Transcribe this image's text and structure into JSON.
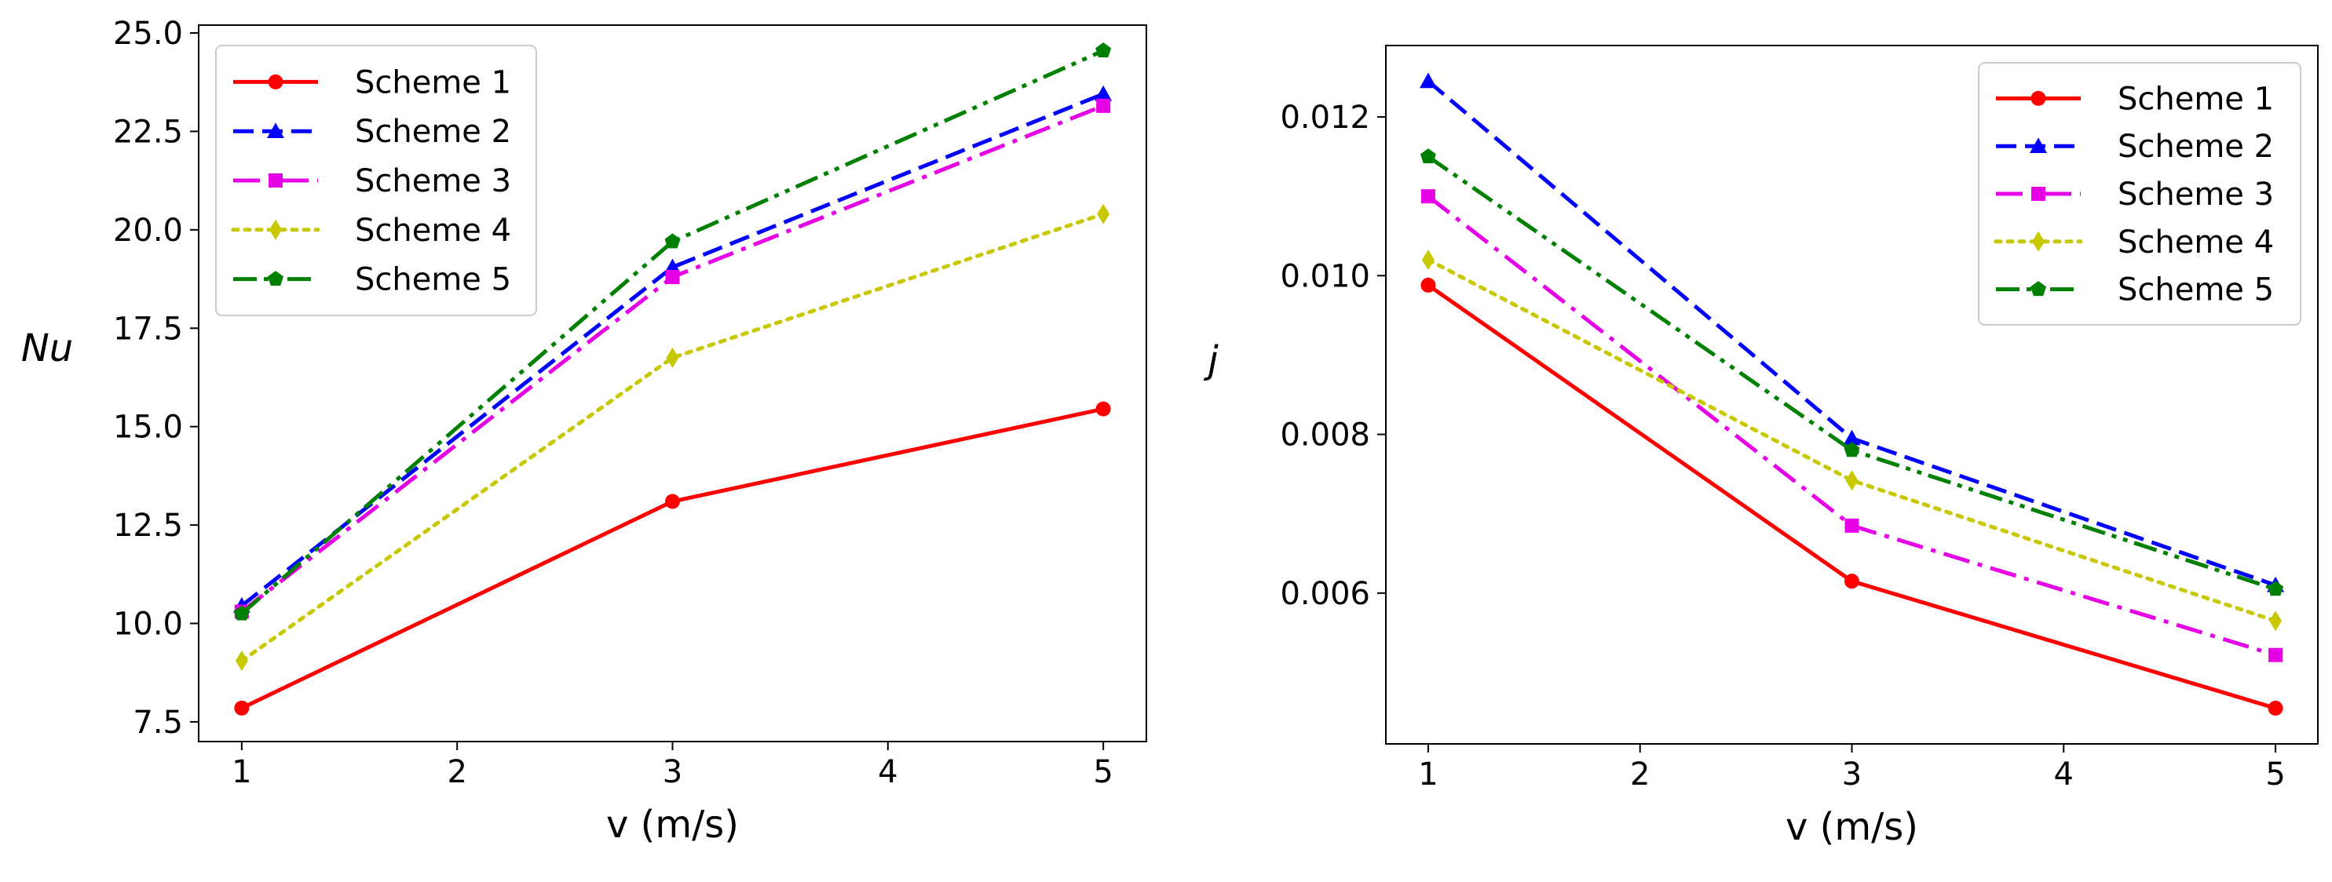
{
  "chart_data": [
    {
      "type": "line",
      "id": "left",
      "title": "",
      "xlabel": "v (m/s)",
      "ylabel": "Nu",
      "ylabel_italic": true,
      "x": [
        1,
        3,
        5
      ],
      "xlim": [
        0.8,
        5.2
      ],
      "ylim": [
        7.0,
        25.2
      ],
      "xticks": [
        1,
        2,
        3,
        4,
        5
      ],
      "xtick_labels": [
        "1",
        "2",
        "3",
        "4",
        "5"
      ],
      "yticks": [
        7.5,
        10.0,
        12.5,
        15.0,
        17.5,
        20.0,
        22.5,
        25.0
      ],
      "ytick_labels": [
        "7.5",
        "10.0",
        "12.5",
        "15.0",
        "17.5",
        "20.0",
        "22.5",
        "25.0"
      ],
      "grid": false,
      "legend_position": "top-left",
      "series": [
        {
          "name": "Scheme 1",
          "color": "#ff0000",
          "style": "solid",
          "marker": "circle",
          "values": [
            7.85,
            13.1,
            15.45
          ]
        },
        {
          "name": "Scheme 2",
          "color": "#0000ff",
          "style": "dashed",
          "marker": "triangle",
          "values": [
            10.45,
            19.05,
            23.45
          ]
        },
        {
          "name": "Scheme 3",
          "color": "#e600e6",
          "style": "dashdot",
          "marker": "square",
          "values": [
            10.3,
            18.8,
            23.15
          ]
        },
        {
          "name": "Scheme 4",
          "color": "#c8c800",
          "style": "dotted",
          "marker": "diamond",
          "values": [
            9.05,
            16.75,
            20.4
          ]
        },
        {
          "name": "Scheme 5",
          "color": "#008000",
          "style": "dashdotdot",
          "marker": "pentagon",
          "values": [
            10.25,
            19.7,
            24.55
          ]
        }
      ]
    },
    {
      "type": "line",
      "id": "right",
      "title": "",
      "xlabel": "v (m/s)",
      "ylabel": "j",
      "ylabel_italic": true,
      "x": [
        1,
        3,
        5
      ],
      "xlim": [
        0.8,
        5.2
      ],
      "ylim": [
        0.0041,
        0.0129
      ],
      "xticks": [
        1,
        2,
        3,
        4,
        5
      ],
      "xtick_labels": [
        "1",
        "2",
        "3",
        "4",
        "5"
      ],
      "yticks": [
        0.006,
        0.008,
        0.01,
        0.012
      ],
      "ytick_labels": [
        "0.006",
        "0.008",
        "0.010",
        "0.012"
      ],
      "grid": false,
      "legend_position": "top-right",
      "series": [
        {
          "name": "Scheme 1",
          "color": "#ff0000",
          "style": "solid",
          "marker": "circle",
          "values": [
            0.00988,
            0.00615,
            0.00455
          ]
        },
        {
          "name": "Scheme 2",
          "color": "#0000ff",
          "style": "dashed",
          "marker": "triangle",
          "values": [
            0.01245,
            0.00795,
            0.0061
          ]
        },
        {
          "name": "Scheme 3",
          "color": "#e600e6",
          "style": "dashdot",
          "marker": "square",
          "values": [
            0.011,
            0.00685,
            0.00522
          ]
        },
        {
          "name": "Scheme 4",
          "color": "#c8c800",
          "style": "dotted",
          "marker": "diamond",
          "values": [
            0.0102,
            0.00742,
            0.00565
          ]
        },
        {
          "name": "Scheme 5",
          "color": "#008000",
          "style": "dashdotdot",
          "marker": "pentagon",
          "values": [
            0.0115,
            0.0078,
            0.00605
          ]
        }
      ]
    }
  ]
}
